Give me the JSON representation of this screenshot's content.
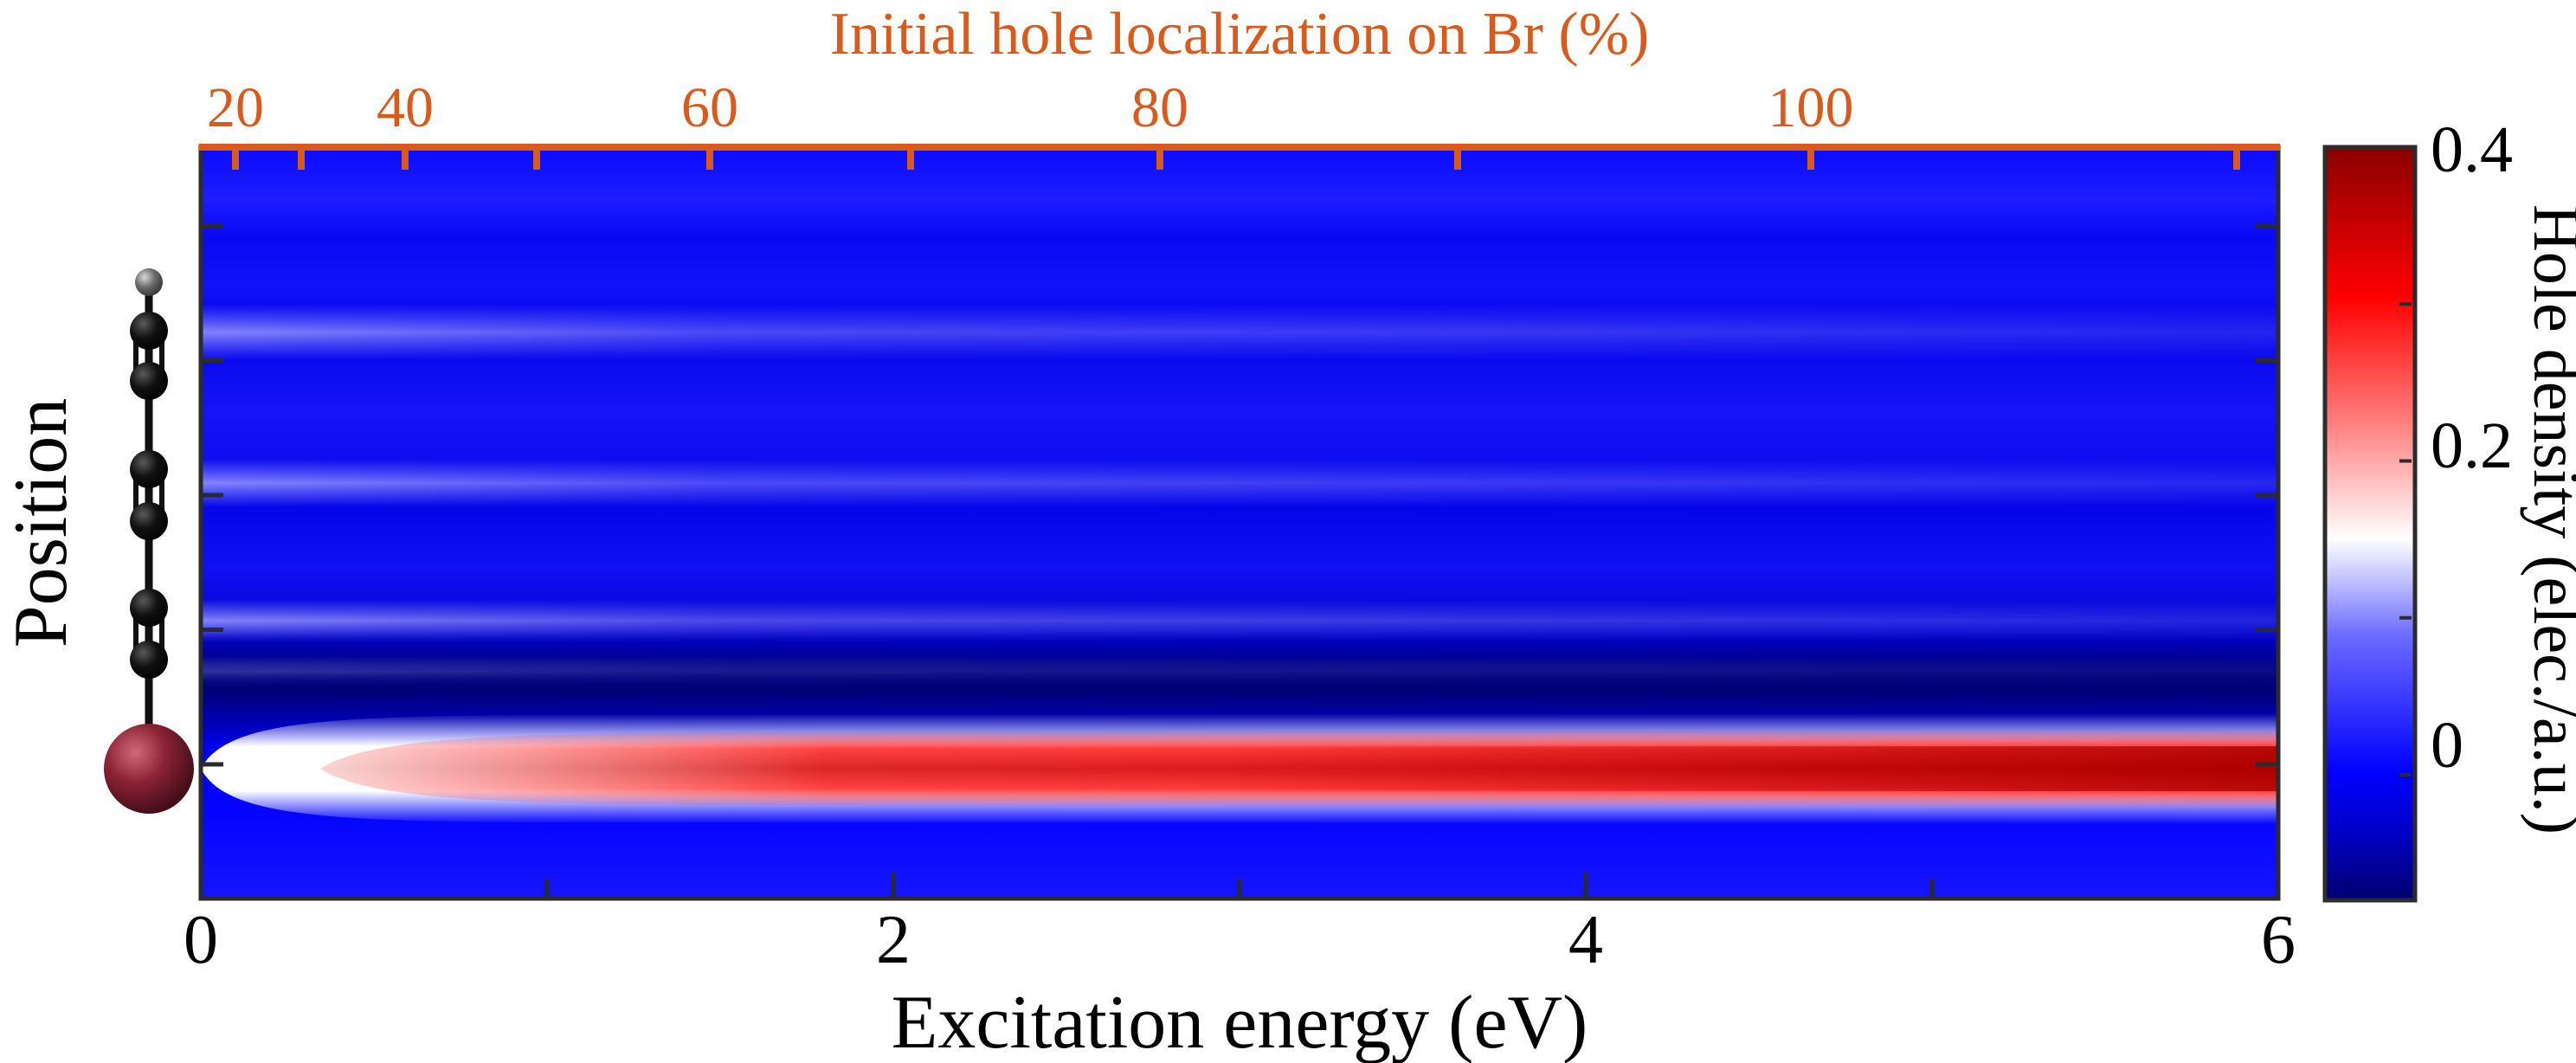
{
  "chart_data": {
    "type": "heatmap",
    "xlabel": "Excitation energy (eV)",
    "ylabel": "Position",
    "top_xlabel": "Initial hole localization on Br (%)",
    "colorbar_label": "Hole density (elec./a.u.)",
    "x_ticks": [
      "0",
      "2",
      "4",
      "6"
    ],
    "x_range": [
      0,
      6
    ],
    "top_ticks": [
      "20",
      "40",
      "60",
      "80",
      "100"
    ],
    "top_tick_energies": [
      0.1,
      0.59,
      1.47,
      2.77,
      4.65
    ],
    "top_minor_energies": [
      0.29,
      0.97,
      2.05,
      3.63,
      5.88
    ],
    "colorbar_ticks": [
      "0.4",
      "0.2",
      "0"
    ],
    "colorbar_range": [
      -0.08,
      0.4
    ],
    "colorbar_tick_values": [
      0.4,
      0.2,
      0
    ],
    "colors": {
      "low": "#00006e",
      "mid_low": "#0000ff",
      "zero": "#ffffff",
      "high": "#ff0000",
      "max": "#8b0000",
      "top_axis": "#d95a1b",
      "bromine_atom": "#7a1f2e",
      "carbon_atom": "#111111",
      "hydrogen_atom": "#777777"
    },
    "features": {
      "br_band_max_density": 0.4,
      "carbon_bands": 4,
      "molecule_icon": "bromo-polyyne-chain"
    }
  }
}
